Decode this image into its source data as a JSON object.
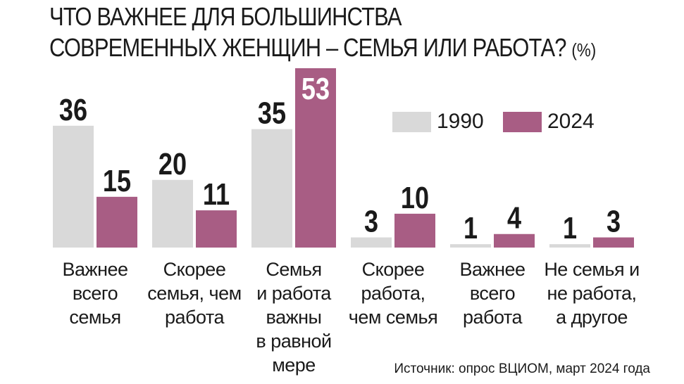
{
  "title": {
    "line1": "ЧТО ВАЖНЕЕ ДЛЯ БОЛЬШИНСТВА",
    "line2": "СОВРЕМЕННЫХ ЖЕНЩИН – СЕМЬЯ ИЛИ РАБОТА?",
    "unit": "(%)"
  },
  "source": "Источник: опрос ВЦИОМ, март 2024 года",
  "colors": {
    "series_1990": "#d9d9d9",
    "series_2024": "#a85d84",
    "baseline": "#cccccc"
  },
  "chart_data": {
    "type": "bar",
    "title": "ЧТО ВАЖНЕЕ ДЛЯ БОЛЬШИНСТВА СОВРЕМЕННЫХ ЖЕНЩИН – СЕМЬЯ ИЛИ РАБОТА? (%)",
    "categories": [
      "Важнее\nвсего\nсемья",
      "Скорее\nсемья, чем\nработа",
      "Семья\nи работа\nважны\nв равной\nмере",
      "Скорее\nработа,\nчем семья",
      "Важнее\nвсего\nработа",
      "Не семья и\nне работа,\nа другое"
    ],
    "series": [
      {
        "name": "1990",
        "values": [
          36,
          20,
          35,
          3,
          1,
          1
        ]
      },
      {
        "name": "2024",
        "values": [
          15,
          11,
          53,
          10,
          4,
          3
        ]
      }
    ],
    "xlabel": "",
    "ylabel": "",
    "ylim": [
      0,
      53
    ],
    "grid": false,
    "legend": "top-right"
  }
}
